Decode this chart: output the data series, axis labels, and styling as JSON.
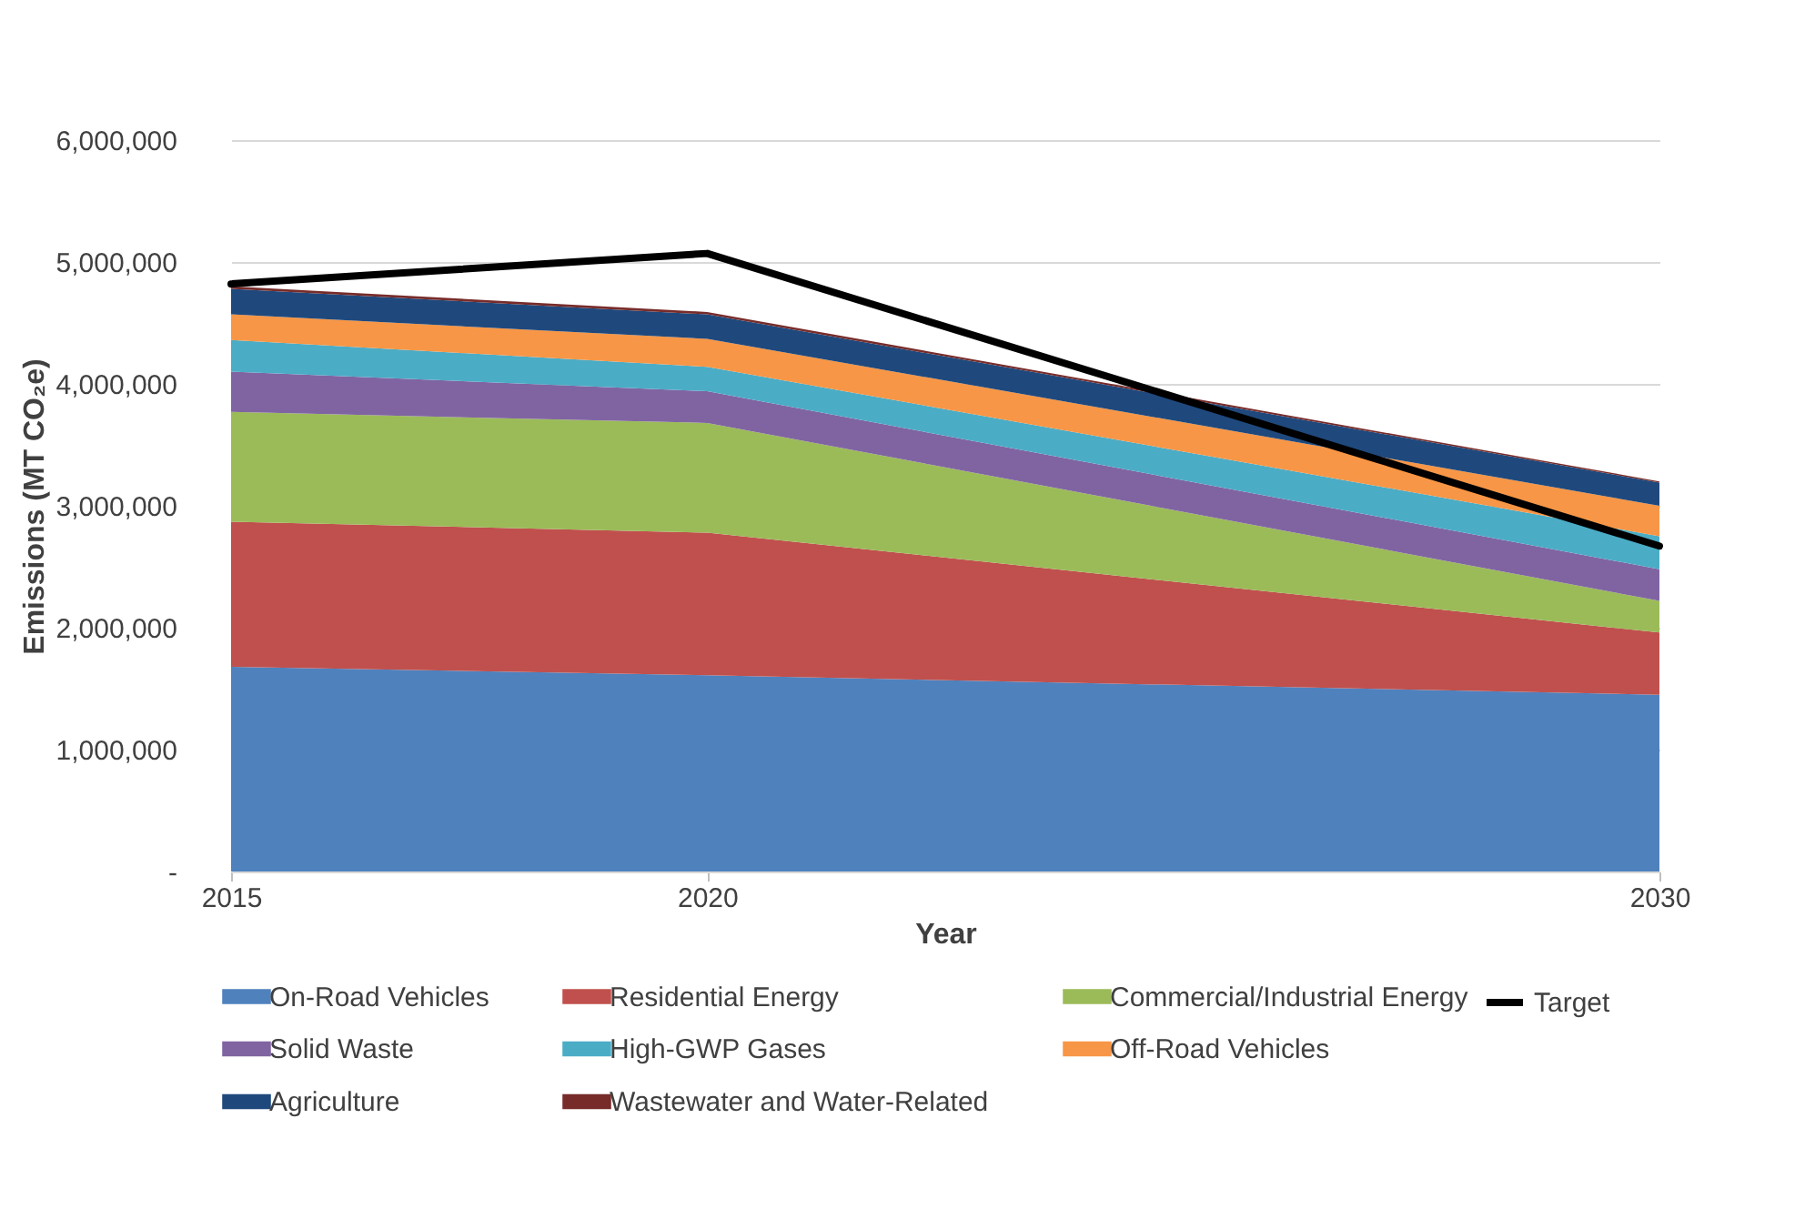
{
  "chart_data": {
    "type": "area",
    "stacked": true,
    "xlabel": "Year",
    "ylabel": "Emissions (MT CO₂e)",
    "x": [
      2015,
      2020,
      2030
    ],
    "xlim": [
      2015,
      2030
    ],
    "xticks": [
      2015,
      2020,
      2030
    ],
    "ylim": [
      0,
      6000000
    ],
    "yticks": [
      {
        "value": 0,
        "label": "-"
      },
      {
        "value": 1000000,
        "label": "1,000,000"
      },
      {
        "value": 2000000,
        "label": "2,000,000"
      },
      {
        "value": 3000000,
        "label": "3,000,000"
      },
      {
        "value": 4000000,
        "label": "4,000,000"
      },
      {
        "value": 5000000,
        "label": "5,000,000"
      },
      {
        "value": 6000000,
        "label": "6,000,000"
      }
    ],
    "grid": "y",
    "legend": "bottom",
    "series": [
      {
        "name": "On-Road Vehicles",
        "color": "#4f81bd",
        "values": [
          1680000,
          1610000,
          1450000
        ]
      },
      {
        "name": "Residential Energy",
        "color": "#c0504d",
        "values": [
          1190000,
          1170000,
          510000
        ]
      },
      {
        "name": "Commercial/Industrial Energy",
        "color": "#9bbb59",
        "values": [
          900000,
          900000,
          260000
        ]
      },
      {
        "name": "Solid Waste",
        "color": "#8064a2",
        "values": [
          330000,
          260000,
          260000
        ]
      },
      {
        "name": "High-GWP Gases",
        "color": "#4bacc6",
        "values": [
          260000,
          200000,
          270000
        ]
      },
      {
        "name": "Off-Road Vehicles",
        "color": "#f79646",
        "values": [
          210000,
          230000,
          250000
        ]
      },
      {
        "name": "Agriculture",
        "color": "#1f497d",
        "values": [
          210000,
          200000,
          190000
        ]
      },
      {
        "name": "Wastewater and Water-Related",
        "color": "#772c2a",
        "values": [
          20000,
          20000,
          10000
        ]
      },
      {
        "name": "Target",
        "type": "line",
        "color": "#000000",
        "values": [
          4820000,
          5070000,
          2670000
        ]
      }
    ]
  }
}
